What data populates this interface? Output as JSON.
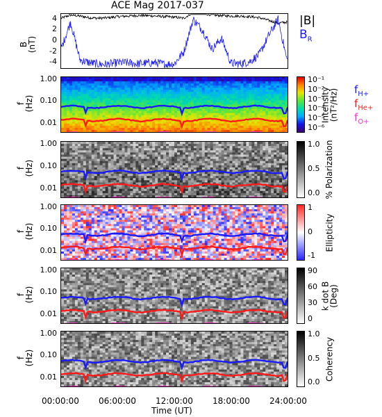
{
  "title": "ACE Mag 2017-037",
  "x_axis": {
    "label": "Time (UT)",
    "ticks": [
      "00:00:00",
      "06:00:00",
      "12:00:00",
      "18:00:00",
      "24:00:00"
    ]
  },
  "legend_b": {
    "total": "|B|",
    "radial_main": "B",
    "radial_sub": "R",
    "total_color": "#000000",
    "radial_color": "#1a1aff"
  },
  "legend_f": {
    "items": [
      {
        "main": "f",
        "sub": "H+",
        "color": "#1a1aff"
      },
      {
        "main": "f",
        "sub": "He+",
        "color": "#ff1a1a"
      },
      {
        "main": "f",
        "sub": "O+",
        "color": "#ff33cc"
      }
    ]
  },
  "panel_b": {
    "ylabel_main": "B",
    "ylabel_unit": "(nT)",
    "yticks": [
      "4",
      "2",
      "0",
      "-2",
      "-4"
    ]
  },
  "freq_ylabel": {
    "main": "f",
    "unit": "(Hz)"
  },
  "freq_yticks": [
    "1.00",
    "0.10",
    "0.01"
  ],
  "colorbars": {
    "intensity": {
      "label_line1": "Intensity",
      "label_line2": "(nT²/Hz)",
      "ticks": [
        "10⁻¹",
        "10⁻²",
        "10⁻³",
        "10⁻⁴",
        "10⁻⁵",
        "10⁻⁶"
      ]
    },
    "polarization": {
      "label": "% Polarization",
      "ticks": [
        "1.0",
        "0.5",
        "0.0"
      ]
    },
    "ellipticity": {
      "label": "Ellipticity",
      "ticks": [
        "1",
        "0",
        "-1"
      ]
    },
    "kdotb": {
      "label_line1": "k dot B",
      "label_line2": "(Deg)",
      "ticks": [
        "90",
        "60",
        "30",
        "0"
      ]
    },
    "coherency": {
      "label": "Coherency",
      "ticks": [
        "1.0",
        "0.5",
        "0.0"
      ]
    }
  },
  "chart_data": [
    {
      "type": "line",
      "title": "ACE Mag 2017-037",
      "xlabel": "Time (UT)",
      "ylabel": "B (nT)",
      "xlim": [
        0,
        24
      ],
      "ylim": [
        -5,
        5
      ],
      "series": [
        {
          "name": "|B|",
          "color": "#000000",
          "x": [
            0,
            1,
            2,
            3,
            4,
            5,
            6,
            7,
            8,
            9,
            10,
            11,
            12,
            13,
            14,
            15,
            16,
            17,
            18,
            19,
            20,
            21,
            22,
            23,
            24
          ],
          "values": [
            4.2,
            4.8,
            4.6,
            4.3,
            4.2,
            4.3,
            4.5,
            4.6,
            4.7,
            4.7,
            4.6,
            4.5,
            4.4,
            4.2,
            5.3,
            5.1,
            4.8,
            4.7,
            4.6,
            4.6,
            4.5,
            4.3,
            3.8,
            3.3,
            3.5
          ]
        },
        {
          "name": "B_R",
          "color": "#1a1aff",
          "x": [
            0,
            1,
            2,
            3,
            4,
            5,
            6,
            7,
            8,
            9,
            10,
            11,
            12,
            13,
            14,
            15,
            16,
            17,
            18,
            19,
            20,
            21,
            22,
            23,
            24
          ],
          "values": [
            -1.5,
            3.5,
            -3.5,
            -4.0,
            -4.3,
            -4.3,
            -4.0,
            -4.0,
            -4.2,
            -4.1,
            -4.0,
            -4.3,
            -4.2,
            -2.0,
            4.0,
            2.0,
            -1.5,
            0.5,
            -4.1,
            -4.2,
            -3.8,
            -2.5,
            1.0,
            4.0,
            -4.0
          ]
        }
      ]
    },
    {
      "type": "heatmap",
      "ylabel": "f (Hz)",
      "xlabel": "Time (UT)",
      "xlim": [
        0,
        24
      ],
      "ylim": [
        0.004,
        1.2
      ],
      "y_scale": "log",
      "colorbar": {
        "label": "Intensity (nT²/Hz)",
        "range": [
          1e-06,
          0.2
        ],
        "scale": "log"
      },
      "overlay_lines": [
        {
          "name": "f_H+",
          "color": "#1a1aff",
          "approx_value": 0.055
        },
        {
          "name": "f_He+",
          "color": "#ff1a1a",
          "approx_value": 0.014
        },
        {
          "name": "f_O+",
          "color": "#ff33cc",
          "approx_value": 0.0035
        }
      ]
    },
    {
      "type": "heatmap",
      "ylabel": "f (Hz)",
      "colorbar": {
        "label": "% Polarization",
        "range": [
          0,
          1
        ]
      }
    },
    {
      "type": "heatmap",
      "ylabel": "f (Hz)",
      "colorbar": {
        "label": "Ellipticity",
        "range": [
          -1,
          1
        ]
      }
    },
    {
      "type": "heatmap",
      "ylabel": "f (Hz)",
      "colorbar": {
        "label": "k dot B (Deg)",
        "range": [
          0,
          90
        ]
      }
    },
    {
      "type": "heatmap",
      "ylabel": "f (Hz)",
      "colorbar": {
        "label": "Coherency",
        "range": [
          0,
          1
        ]
      }
    }
  ]
}
